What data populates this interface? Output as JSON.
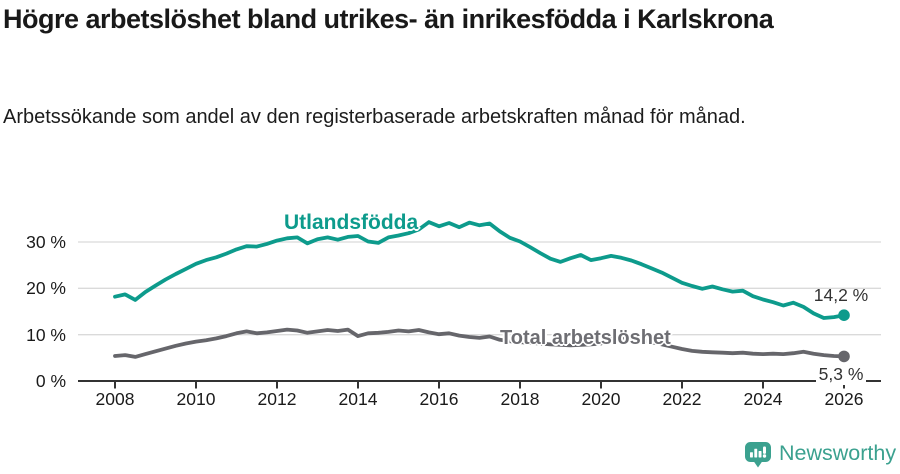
{
  "header": {
    "title": "Högre arbetslöshet bland utrikes- än inrikesfödda i Karlskrona",
    "subtitle": "Arbetssökande som andel av den registerbaserade arbetskraften månad för månad."
  },
  "chart_data": {
    "type": "line",
    "title": "Högre arbetslöshet bland utrikes- än inrikesfödda i Karlskrona",
    "subtitle": "Arbetssökande som andel av den registerbaserade arbetskraften månad för månad.",
    "xlabel": "",
    "ylabel": "",
    "grid": "horizontal",
    "legend_position": "inline",
    "ylim": [
      0,
      37
    ],
    "yticks": [
      0,
      10,
      20,
      30
    ],
    "ytick_labels": [
      "0 %",
      "10 %",
      "20 %",
      "30 %"
    ],
    "xticks": [
      2008,
      2010,
      2012,
      2014,
      2016,
      2018,
      2020,
      2022,
      2024,
      2026
    ],
    "colors": {
      "axis": "#333333",
      "grid": "#dadada"
    },
    "x": [
      2008,
      2008.25,
      2008.5,
      2008.75,
      2009,
      2009.25,
      2009.5,
      2009.75,
      2010,
      2010.25,
      2010.5,
      2010.75,
      2011,
      2011.25,
      2011.5,
      2011.75,
      2012,
      2012.25,
      2012.5,
      2012.75,
      2013,
      2013.25,
      2013.5,
      2013.75,
      2014,
      2014.25,
      2014.5,
      2014.75,
      2015,
      2015.25,
      2015.5,
      2015.75,
      2016,
      2016.25,
      2016.5,
      2016.75,
      2017,
      2017.25,
      2017.5,
      2017.75,
      2018,
      2018.25,
      2018.5,
      2018.75,
      2019,
      2019.25,
      2019.5,
      2019.75,
      2020,
      2020.25,
      2020.5,
      2020.75,
      2021,
      2021.25,
      2021.5,
      2021.75,
      2022,
      2022.25,
      2022.5,
      2022.75,
      2023,
      2023.25,
      2023.5,
      2023.75,
      2024,
      2024.25,
      2024.5,
      2024.75,
      2025,
      2025.25,
      2025.5,
      2025.75,
      2026
    ],
    "series": [
      {
        "name": "Utlandsfödda",
        "color": "#0D9B8C",
        "label_color": "#0D9B8C",
        "end_label": "14,2 %",
        "end_value": 14.2,
        "values": [
          18.2,
          18.7,
          17.5,
          19.2,
          20.6,
          21.9,
          23.1,
          24.2,
          25.3,
          26.1,
          26.7,
          27.5,
          28.4,
          29.1,
          29.0,
          29.6,
          30.3,
          30.8,
          31.0,
          29.7,
          30.6,
          31.0,
          30.5,
          31.1,
          31.3,
          30.1,
          29.8,
          31.0,
          31.4,
          31.9,
          32.7,
          34.3,
          33.4,
          34.1,
          33.2,
          34.2,
          33.6,
          34.0,
          32.3,
          30.9,
          30.1,
          28.9,
          27.6,
          26.4,
          25.7,
          26.5,
          27.2,
          26.1,
          26.5,
          27.0,
          26.6,
          26.0,
          25.2,
          24.3,
          23.4,
          22.3,
          21.2,
          20.5,
          19.9,
          20.4,
          19.8,
          19.3,
          19.5,
          18.3,
          17.6,
          17.0,
          16.3,
          16.9,
          16.0,
          14.6,
          13.6,
          13.8,
          14.2
        ]
      },
      {
        "name": "Total arbetslöshet",
        "color": "#66666B",
        "label_color": "#6E6E73",
        "end_label": "5,3 %",
        "end_value": 5.3,
        "values": [
          5.4,
          5.6,
          5.2,
          5.8,
          6.4,
          7.0,
          7.6,
          8.1,
          8.5,
          8.8,
          9.2,
          9.7,
          10.3,
          10.7,
          10.3,
          10.5,
          10.8,
          11.1,
          10.9,
          10.4,
          10.7,
          11.0,
          10.8,
          11.1,
          9.7,
          10.3,
          10.4,
          10.6,
          10.9,
          10.7,
          11.0,
          10.5,
          10.1,
          10.3,
          9.8,
          9.5,
          9.3,
          9.6,
          8.9,
          8.6,
          8.4,
          8.2,
          8.1,
          7.9,
          7.8,
          7.7,
          7.8,
          7.9,
          8.1,
          9.1,
          9.4,
          9.1,
          8.8,
          8.4,
          7.9,
          7.4,
          6.9,
          6.5,
          6.3,
          6.2,
          6.1,
          6.0,
          6.1,
          5.9,
          5.8,
          5.9,
          5.8,
          6.0,
          6.3,
          5.9,
          5.6,
          5.4,
          5.3
        ]
      }
    ]
  },
  "footer": {
    "brand": "Newsworthy"
  }
}
